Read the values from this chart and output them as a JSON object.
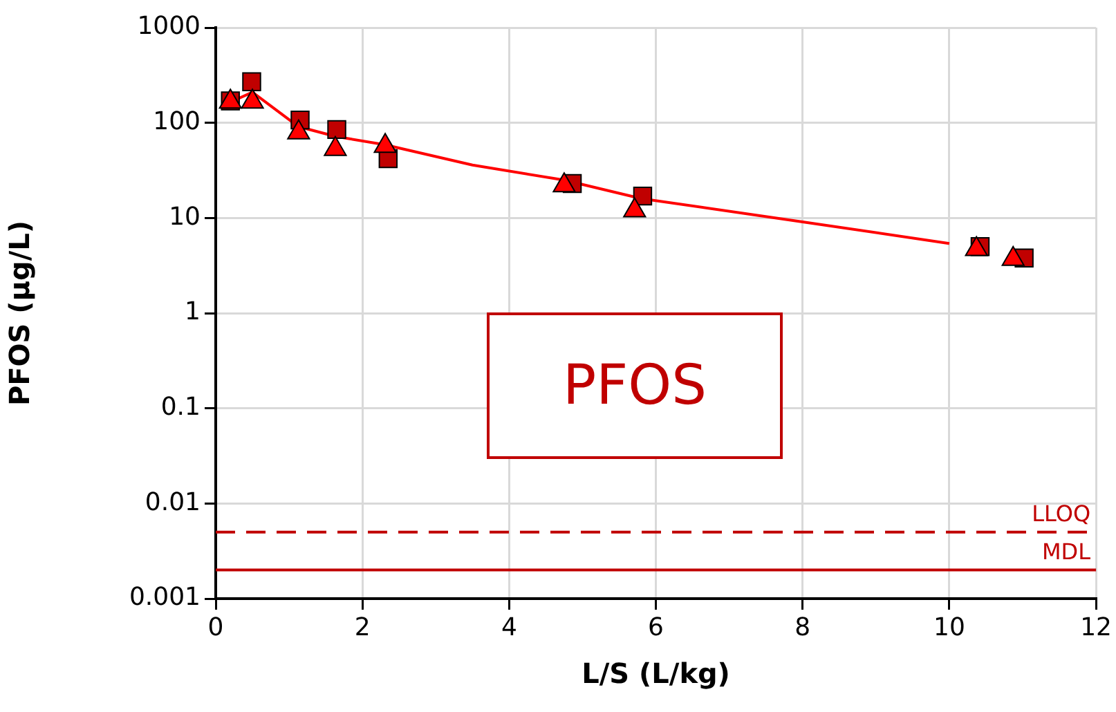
{
  "chart_data": {
    "type": "scatter",
    "xlabel": "L/S (L/kg)",
    "ylabel": "PFOS (µg/L)",
    "log": "y",
    "grid": true,
    "legend": false,
    "xlim": [
      0,
      12
    ],
    "xticks": [
      0,
      2,
      4,
      6,
      8,
      10,
      12
    ],
    "ylim": [
      0.001,
      1000
    ],
    "yticks": [
      0.001,
      0.01,
      0.1,
      1,
      10,
      100,
      1000
    ],
    "series": [
      {
        "type": "scatter",
        "marker": "square",
        "color": "#c00000",
        "x": [
          0.2,
          0.49,
          1.15,
          1.65,
          2.35,
          4.86,
          5.82,
          10.42,
          11.02
        ],
        "values": [
          170,
          270,
          107,
          85,
          42,
          23,
          17,
          5.0,
          3.8
        ]
      },
      {
        "type": "scatter",
        "marker": "triangle",
        "color": "#ff0000",
        "x": [
          0.2,
          0.5,
          1.13,
          1.63,
          2.31,
          4.75,
          5.71,
          10.37,
          10.87
        ],
        "values": [
          166,
          166,
          79,
          53,
          57,
          22,
          12,
          4.7,
          3.7
        ]
      },
      {
        "type": "line",
        "marker": "none",
        "line_style": "solid",
        "color": "#ff0000",
        "x": [
          0.2,
          0.5,
          1.13,
          1.63,
          2.3,
          3.5,
          4.75,
          5.8,
          8,
          10
        ],
        "values": [
          165,
          210,
          91,
          72,
          59,
          36,
          25,
          16,
          9.1,
          5.4
        ]
      }
    ],
    "ref_lines": [
      {
        "axis": "y",
        "value": 0.005,
        "label": "LLOQ",
        "color": "#c00000",
        "line_style": "dashed"
      },
      {
        "axis": "y",
        "value": 0.002,
        "label": "MDL",
        "color": "#c00000",
        "line_style": "solid"
      }
    ],
    "annotations": [
      "PFOS"
    ]
  }
}
